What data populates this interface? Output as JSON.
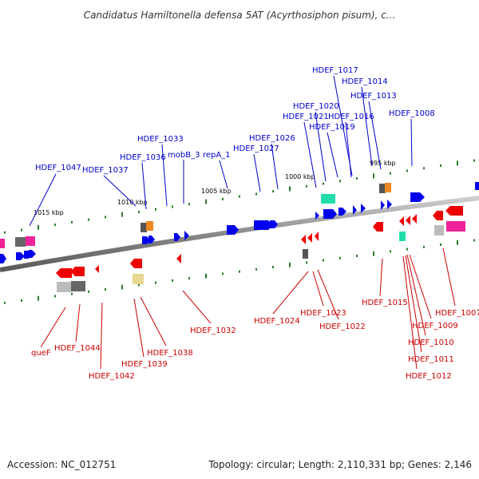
{
  "title": "Candidatus Hamiltonella defensa 5AT (Acyrthosiphon pisum), c...",
  "footer": {
    "accession": "Accession: NC_012751",
    "topology": "Topology: circular; Length: 2,110,331 bp; Genes: 2,146"
  },
  "colors": {
    "forward_label": "#0000cc",
    "reverse_label": "#cc0000",
    "forward_gene": "#0000ee",
    "reverse_gene": "#ee0000",
    "tick": "#2e7d2e",
    "backbone": "#888888",
    "magenta": "#ee2299",
    "orange": "#ee8822",
    "teal": "#22ddaa",
    "gray": "#666666",
    "khaki": "#e8d890"
  },
  "scale_ticks": [
    "1015 kbp",
    "1010 kbp",
    "1005 kbp",
    "1000 kbp",
    "995 kbp"
  ],
  "forward_labels": [
    "HDEF_1047",
    "HDEF_1037",
    "HDEF_1036",
    "HDEF_1033",
    "mobB_3",
    "repA_1",
    "HDEF_1027",
    "HDEF_1026",
    "HDEF_1021",
    "HDEF_1020",
    "HDEF_1019",
    "HDEF_1016",
    "HDEF_1017",
    "HDEF_1014",
    "HDEF_1013",
    "HDEF_1008"
  ],
  "reverse_labels": [
    "queF",
    "HDEF_1044",
    "HDEF_1042",
    "HDEF_1039",
    "HDEF_1038",
    "HDEF_1032",
    "HDEF_1024",
    "HDEF_1023",
    "HDEF_1022",
    "HDEF_1015",
    "HDEF_1009",
    "HDEF_1010",
    "HDEF_1011",
    "HDEF_1012",
    "HDEF_1007"
  ]
}
